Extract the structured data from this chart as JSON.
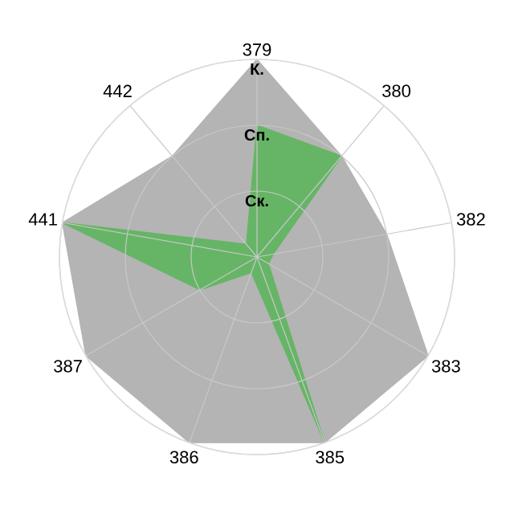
{
  "chart_data": {
    "type": "radar",
    "categories": [
      "379",
      "380",
      "382",
      "383",
      "385",
      "386",
      "387",
      "441",
      "442"
    ],
    "series": [
      {
        "color": "#b4b4b4",
        "values": [
          3,
          2,
          2,
          3,
          3,
          3,
          3,
          3,
          2
        ]
      },
      {
        "color": "#66b566",
        "values": [
          2,
          2,
          0.25,
          0.2,
          3,
          0.25,
          1,
          3,
          0.25
        ]
      }
    ],
    "ylim": [
      0,
      3
    ],
    "yticks": [
      {
        "value": 1,
        "label": "Ск."
      },
      {
        "value": 2,
        "label": "Сп."
      },
      {
        "value": 3,
        "label": "К."
      }
    ],
    "grid": true
  }
}
